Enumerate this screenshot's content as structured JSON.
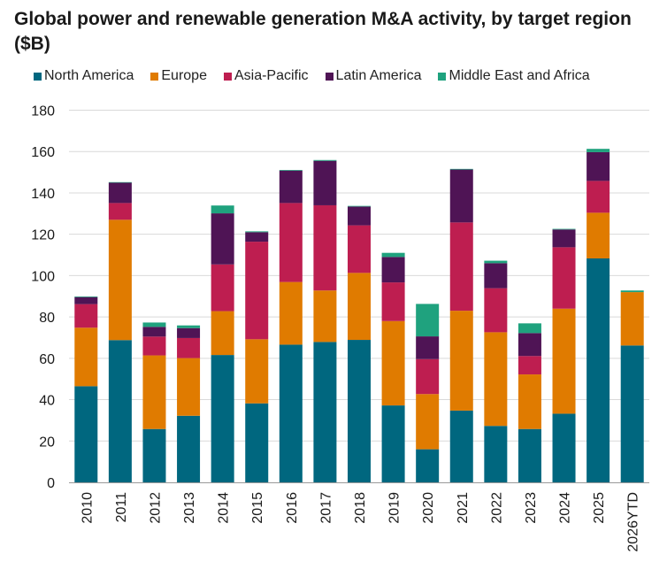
{
  "chart_data": {
    "type": "bar",
    "stacked": true,
    "title": "Global power and renewable generation M&A activity, by target region ($B)",
    "xlabel": "",
    "ylabel": "",
    "ylim": [
      0,
      180
    ],
    "yticks": [
      0,
      20,
      40,
      60,
      80,
      100,
      120,
      140,
      160,
      180
    ],
    "grid": true,
    "legend_position": "top",
    "categories": [
      "2010",
      "2011",
      "2012",
      "2013",
      "2014",
      "2015",
      "2016",
      "2017",
      "2018",
      "2019",
      "2020",
      "2021",
      "2022",
      "2023",
      "2024",
      "2025",
      "2026YTD"
    ],
    "series": [
      {
        "name": "North America",
        "color": "#00677F",
        "values": [
          46.5,
          68.8,
          25.8,
          32.2,
          61.6,
          38.2,
          66.6,
          67.9,
          68.9,
          37.2,
          16.0,
          34.7,
          27.3,
          25.8,
          33.2,
          108.3,
          66.2
        ]
      },
      {
        "name": "Europe",
        "color": "#E07B00",
        "values": [
          28.3,
          58.2,
          35.6,
          27.9,
          21.2,
          31.0,
          30.3,
          24.9,
          32.4,
          40.8,
          26.7,
          48.3,
          45.3,
          26.4,
          50.8,
          22.1,
          25.8
        ]
      },
      {
        "name": "Asia-Pacific",
        "color": "#BE1E50",
        "values": [
          11.4,
          8.1,
          9.1,
          9.7,
          22.6,
          47.2,
          38.2,
          41.2,
          23.0,
          18.7,
          16.9,
          42.7,
          21.3,
          8.9,
          29.7,
          15.4,
          0
        ]
      },
      {
        "name": "Latin America",
        "color": "#4F1455",
        "values": [
          3.4,
          9.9,
          4.7,
          4.8,
          24.7,
          4.6,
          15.7,
          21.5,
          9.1,
          12.3,
          11.0,
          25.6,
          12.1,
          11.1,
          8.6,
          13.9,
          0
        ]
      },
      {
        "name": "Middle East and Africa",
        "color": "#1FA27E",
        "values": [
          0.3,
          0.2,
          2.1,
          1.3,
          3.8,
          0.4,
          0.3,
          0.4,
          0.3,
          2.0,
          15.7,
          0.3,
          1.2,
          4.7,
          0.3,
          1.6,
          0.8
        ]
      }
    ]
  }
}
